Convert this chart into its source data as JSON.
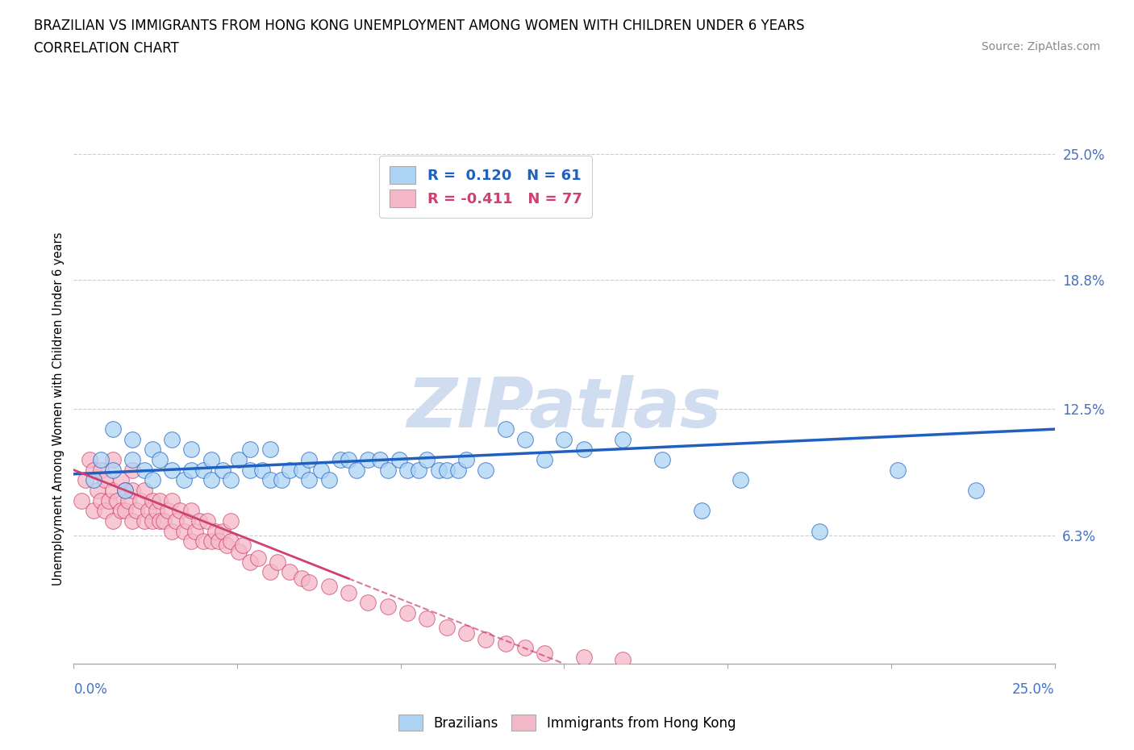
{
  "title_line1": "BRAZILIAN VS IMMIGRANTS FROM HONG KONG UNEMPLOYMENT AMONG WOMEN WITH CHILDREN UNDER 6 YEARS",
  "title_line2": "CORRELATION CHART",
  "source": "Source: ZipAtlas.com",
  "ylabel": "Unemployment Among Women with Children Under 6 years",
  "xmin": 0.0,
  "xmax": 0.25,
  "ymin": 0.0,
  "ymax": 0.25,
  "R_blue": 0.12,
  "N_blue": 61,
  "R_pink": -0.411,
  "N_pink": 77,
  "color_blue": "#ADD4F5",
  "color_pink": "#F5B8C8",
  "line_blue": "#2060C0",
  "line_pink": "#D04070",
  "watermark_color": "#D0DCF0",
  "title_fontsize": 12,
  "blue_x": [
    0.005,
    0.007,
    0.01,
    0.01,
    0.013,
    0.015,
    0.015,
    0.018,
    0.02,
    0.02,
    0.022,
    0.025,
    0.025,
    0.028,
    0.03,
    0.03,
    0.033,
    0.035,
    0.035,
    0.038,
    0.04,
    0.042,
    0.045,
    0.045,
    0.048,
    0.05,
    0.05,
    0.053,
    0.055,
    0.058,
    0.06,
    0.06,
    0.063,
    0.065,
    0.068,
    0.07,
    0.072,
    0.075,
    0.078,
    0.08,
    0.083,
    0.085,
    0.088,
    0.09,
    0.093,
    0.095,
    0.098,
    0.1,
    0.105,
    0.11,
    0.115,
    0.12,
    0.125,
    0.13,
    0.14,
    0.15,
    0.16,
    0.17,
    0.19,
    0.21,
    0.23
  ],
  "blue_y": [
    0.09,
    0.1,
    0.095,
    0.115,
    0.085,
    0.1,
    0.11,
    0.095,
    0.09,
    0.105,
    0.1,
    0.095,
    0.11,
    0.09,
    0.095,
    0.105,
    0.095,
    0.09,
    0.1,
    0.095,
    0.09,
    0.1,
    0.095,
    0.105,
    0.095,
    0.09,
    0.105,
    0.09,
    0.095,
    0.095,
    0.09,
    0.1,
    0.095,
    0.09,
    0.1,
    0.1,
    0.095,
    0.1,
    0.1,
    0.095,
    0.1,
    0.095,
    0.095,
    0.1,
    0.095,
    0.095,
    0.095,
    0.1,
    0.095,
    0.115,
    0.11,
    0.1,
    0.11,
    0.105,
    0.11,
    0.1,
    0.075,
    0.09,
    0.065,
    0.095,
    0.085
  ],
  "pink_x": [
    0.002,
    0.003,
    0.004,
    0.005,
    0.005,
    0.006,
    0.007,
    0.007,
    0.008,
    0.008,
    0.009,
    0.01,
    0.01,
    0.01,
    0.011,
    0.012,
    0.012,
    0.013,
    0.013,
    0.014,
    0.015,
    0.015,
    0.015,
    0.016,
    0.017,
    0.018,
    0.018,
    0.019,
    0.02,
    0.02,
    0.021,
    0.022,
    0.022,
    0.023,
    0.024,
    0.025,
    0.025,
    0.026,
    0.027,
    0.028,
    0.029,
    0.03,
    0.03,
    0.031,
    0.032,
    0.033,
    0.034,
    0.035,
    0.036,
    0.037,
    0.038,
    0.039,
    0.04,
    0.04,
    0.042,
    0.043,
    0.045,
    0.047,
    0.05,
    0.052,
    0.055,
    0.058,
    0.06,
    0.065,
    0.07,
    0.075,
    0.08,
    0.085,
    0.09,
    0.095,
    0.1,
    0.105,
    0.11,
    0.115,
    0.12,
    0.13,
    0.14
  ],
  "pink_y": [
    0.08,
    0.09,
    0.1,
    0.075,
    0.095,
    0.085,
    0.08,
    0.095,
    0.075,
    0.09,
    0.08,
    0.07,
    0.085,
    0.1,
    0.08,
    0.075,
    0.09,
    0.075,
    0.085,
    0.08,
    0.07,
    0.085,
    0.095,
    0.075,
    0.08,
    0.07,
    0.085,
    0.075,
    0.07,
    0.08,
    0.075,
    0.07,
    0.08,
    0.07,
    0.075,
    0.065,
    0.08,
    0.07,
    0.075,
    0.065,
    0.07,
    0.06,
    0.075,
    0.065,
    0.07,
    0.06,
    0.07,
    0.06,
    0.065,
    0.06,
    0.065,
    0.058,
    0.06,
    0.07,
    0.055,
    0.058,
    0.05,
    0.052,
    0.045,
    0.05,
    0.045,
    0.042,
    0.04,
    0.038,
    0.035,
    0.03,
    0.028,
    0.025,
    0.022,
    0.018,
    0.015,
    0.012,
    0.01,
    0.008,
    0.005,
    0.003,
    0.002
  ],
  "blue_line_start_x": 0.0,
  "blue_line_end_x": 0.25,
  "blue_line_start_y": 0.093,
  "blue_line_end_y": 0.115,
  "pink_line_start_x": 0.0,
  "pink_line_end_x": 0.125,
  "pink_line_start_y": 0.095,
  "pink_line_end_y": 0.0
}
